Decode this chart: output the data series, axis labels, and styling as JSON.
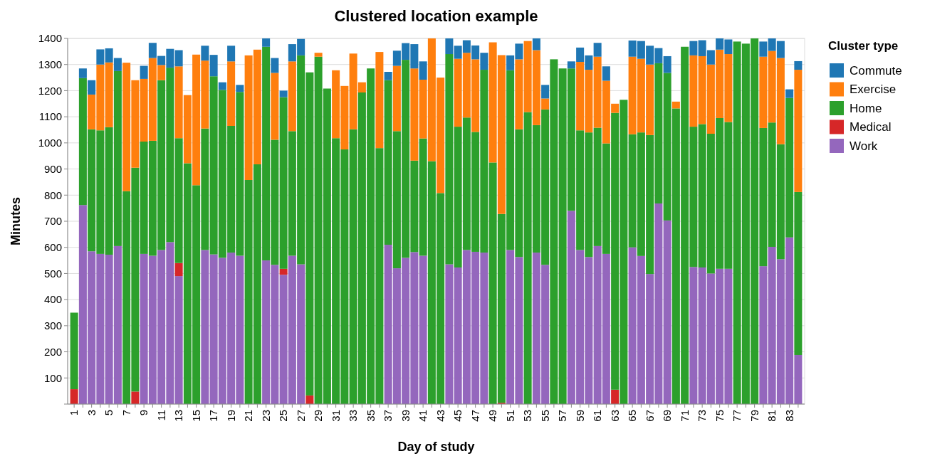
{
  "chart_data": {
    "type": "bar",
    "title": "Clustered location example",
    "xlabel": "Day of study",
    "ylabel": "Minutes",
    "legend_title": "Cluster type",
    "stacked": true,
    "grid": "y",
    "legend": "right",
    "categories": [
      "1",
      null,
      "3",
      null,
      "5",
      null,
      "7",
      null,
      "9",
      null,
      "11",
      null,
      "13",
      null,
      "15",
      null,
      "17",
      null,
      "19",
      null,
      "21",
      null,
      "23",
      null,
      "25",
      null,
      "27",
      null,
      "29",
      null,
      "31",
      null,
      "33",
      null,
      "35",
      null,
      "37",
      null,
      "39",
      null,
      "41",
      null,
      "43",
      null,
      "45",
      null,
      "47",
      null,
      "49",
      null,
      "51",
      null,
      "53",
      null,
      "55",
      null,
      "57",
      null,
      "59",
      null,
      "61",
      null,
      "63",
      null,
      "65",
      null,
      "67",
      null,
      "69",
      null,
      "71",
      null,
      "73",
      null,
      "75",
      null,
      "77",
      null,
      "79",
      null,
      "81",
      null,
      "83",
      null
    ],
    "ylim": [
      0,
      1400
    ],
    "yticks": [
      {
        "value": 0,
        "label": null
      },
      100,
      200,
      300,
      400,
      500,
      600,
      700,
      800,
      900,
      1000,
      1100,
      1200,
      1300,
      1400
    ],
    "series": [
      {
        "name": "Work",
        "color": "#9467bd",
        "values": [
          0,
          762,
          585,
          575,
          572,
          605,
          0,
          0,
          575,
          568,
          590,
          620,
          490,
          0,
          0,
          590,
          573,
          560,
          580,
          568,
          0,
          0,
          550,
          533,
          495,
          568,
          535,
          0,
          0,
          0,
          0,
          0,
          0,
          0,
          0,
          0,
          610,
          520,
          560,
          582,
          568,
          0,
          0,
          535,
          523,
          590,
          583,
          580,
          0,
          0,
          590,
          563,
          0,
          580,
          533,
          0,
          0,
          740,
          590,
          563,
          605,
          575,
          0,
          0,
          600,
          567,
          498,
          768,
          703,
          0,
          0,
          525,
          523,
          500,
          518,
          518,
          0,
          0,
          0,
          528,
          602,
          555,
          638,
          188
        ]
      },
      {
        "name": "Medical",
        "color": "#d62728",
        "values": [
          57,
          0,
          0,
          0,
          0,
          0,
          0,
          48,
          0,
          0,
          0,
          0,
          50,
          0,
          0,
          0,
          0,
          0,
          0,
          0,
          0,
          0,
          0,
          0,
          23,
          0,
          0,
          33,
          0,
          0,
          0,
          0,
          0,
          0,
          0,
          0,
          0,
          0,
          0,
          0,
          0,
          0,
          0,
          0,
          0,
          0,
          0,
          0,
          0,
          5,
          0,
          0,
          0,
          0,
          0,
          0,
          0,
          0,
          0,
          0,
          0,
          0,
          55,
          0,
          0,
          0,
          0,
          0,
          0,
          0,
          0,
          0,
          0,
          0,
          0,
          0,
          0,
          0,
          0,
          0,
          0,
          0,
          0,
          0
        ]
      },
      {
        "name": "Home",
        "color": "#2ca02c",
        "values": [
          293,
          486,
          467,
          473,
          488,
          670,
          815,
          857,
          430,
          440,
          650,
          668,
          478,
          922,
          838,
          465,
          682,
          643,
          485,
          627,
          858,
          918,
          818,
          479,
          657,
          477,
          800,
          1237,
          1330,
          1208,
          1018,
          975,
          1052,
          1193,
          1285,
          980,
          630,
          525,
          758,
          350,
          449,
          930,
          808,
          805,
          539,
          507,
          459,
          700,
          925,
          723,
          688,
          489,
          1118,
          488,
          595,
          1320,
          1285,
          545,
          458,
          477,
          453,
          423,
          1060,
          1165,
          433,
          473,
          532,
          537,
          565,
          1132,
          1368,
          537,
          549,
          535,
          577,
          562,
          1388,
          1380,
          1400,
          529,
          476,
          440,
          534,
          624
        ]
      },
      {
        "name": "Exercise",
        "color": "#ff7f0e",
        "values": [
          0,
          0,
          133,
          252,
          248,
          0,
          492,
          335,
          240,
          317,
          58,
          0,
          275,
          261,
          500,
          260,
          0,
          0,
          247,
          0,
          477,
          439,
          0,
          256,
          0,
          267,
          0,
          0,
          15,
          0,
          260,
          243,
          290,
          39,
          0,
          368,
          0,
          250,
          0,
          353,
          225,
          470,
          442,
          0,
          260,
          248,
          278,
          0,
          460,
          608,
          0,
          268,
          272,
          287,
          42,
          0,
          0,
          0,
          262,
          240,
          272,
          240,
          35,
          0,
          297,
          282,
          270,
          0,
          0,
          26,
          0,
          273,
          260,
          265,
          262,
          260,
          0,
          0,
          0,
          273,
          274,
          330,
          0,
          468
        ]
      },
      {
        "name": "Commute",
        "color": "#1f77b4",
        "values": [
          0,
          37,
          55,
          58,
          54,
          50,
          0,
          0,
          50,
          58,
          35,
          72,
          62,
          0,
          0,
          57,
          82,
          29,
          60,
          27,
          0,
          0,
          32,
          57,
          25,
          66,
          63,
          0,
          0,
          0,
          0,
          0,
          0,
          0,
          0,
          0,
          32,
          58,
          64,
          93,
          70,
          0,
          0,
          60,
          50,
          48,
          53,
          65,
          0,
          0,
          57,
          60,
          0,
          45,
          52,
          0,
          0,
          27,
          55,
          55,
          53,
          55,
          0,
          0,
          62,
          68,
          72,
          58,
          64,
          0,
          0,
          55,
          61,
          55,
          43,
          56,
          0,
          0,
          0,
          58,
          48,
          65,
          33,
          33
        ]
      }
    ]
  }
}
